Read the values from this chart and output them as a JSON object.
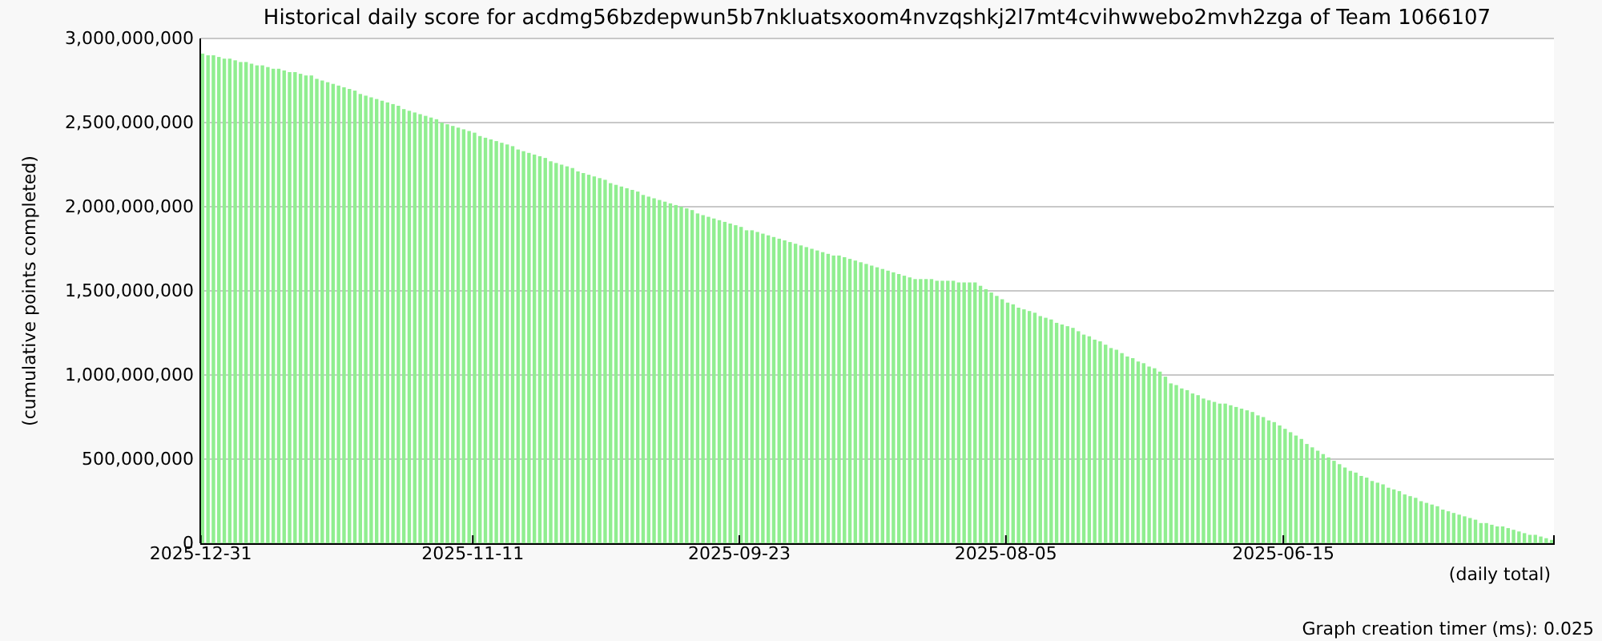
{
  "chart_data": {
    "type": "bar",
    "title": "Historical daily score for acdmg56bzdepwun5b7nkluatsxoom4nvzqshkj2l7mt4cvihwwebo2mvh2zga of Team 1066107",
    "ylabel": "(cumulative points completed)",
    "xlabel": "(daily total)",
    "annotations": [
      "Graph creation timer (ms): 0.025"
    ],
    "categories": [
      "2025-12-31",
      null,
      null,
      null,
      null,
      null,
      null,
      null,
      null,
      null,
      null,
      null,
      null,
      null,
      null,
      null,
      null,
      null,
      null,
      null,
      null,
      null,
      null,
      null,
      null,
      null,
      null,
      null,
      null,
      null,
      null,
      null,
      null,
      null,
      null,
      null,
      null,
      null,
      null,
      null,
      null,
      null,
      null,
      null,
      null,
      null,
      null,
      null,
      null,
      null,
      "2025-11-11",
      null,
      null,
      null,
      null,
      null,
      null,
      null,
      null,
      null,
      null,
      null,
      null,
      null,
      null,
      null,
      null,
      null,
      null,
      null,
      null,
      null,
      null,
      null,
      null,
      null,
      null,
      null,
      null,
      null,
      null,
      null,
      null,
      null,
      null,
      null,
      null,
      null,
      null,
      null,
      null,
      null,
      null,
      null,
      null,
      null,
      null,
      null,
      null,
      "2025-09-23",
      null,
      null,
      null,
      null,
      null,
      null,
      null,
      null,
      null,
      null,
      null,
      null,
      null,
      null,
      null,
      null,
      null,
      null,
      null,
      null,
      null,
      null,
      null,
      null,
      null,
      null,
      null,
      null,
      null,
      null,
      null,
      null,
      null,
      null,
      null,
      null,
      null,
      null,
      null,
      null,
      null,
      null,
      null,
      null,
      null,
      null,
      null,
      null,
      "2025-08-05",
      null,
      null,
      null,
      null,
      null,
      null,
      null,
      null,
      null,
      null,
      null,
      null,
      null,
      null,
      null,
      null,
      null,
      null,
      null,
      null,
      null,
      null,
      null,
      null,
      null,
      null,
      null,
      null,
      null,
      null,
      null,
      null,
      null,
      null,
      null,
      null,
      null,
      null,
      null,
      null,
      null,
      null,
      null,
      null,
      null,
      null,
      null,
      null,
      null,
      null,
      "2025-06-15",
      null,
      null,
      null,
      null,
      null,
      null,
      null,
      null,
      null,
      null,
      null,
      null,
      null,
      null,
      null,
      null,
      null,
      null,
      null,
      null,
      null,
      null,
      null,
      null,
      null,
      null,
      null,
      null,
      null,
      null,
      null,
      null,
      null,
      null,
      null,
      null,
      null,
      null,
      null,
      null,
      null,
      null,
      null,
      null,
      null,
      null,
      null,
      null,
      null
    ],
    "values": [
      2910000000,
      2900000000,
      2900000000,
      2890000000,
      2880000000,
      2880000000,
      2870000000,
      2860000000,
      2860000000,
      2850000000,
      2840000000,
      2840000000,
      2830000000,
      2820000000,
      2820000000,
      2810000000,
      2800000000,
      2800000000,
      2790000000,
      2780000000,
      2780000000,
      2760000000,
      2750000000,
      2740000000,
      2730000000,
      2720000000,
      2710000000,
      2700000000,
      2690000000,
      2670000000,
      2660000000,
      2650000000,
      2640000000,
      2630000000,
      2620000000,
      2610000000,
      2600000000,
      2580000000,
      2570000000,
      2560000000,
      2550000000,
      2540000000,
      2530000000,
      2520000000,
      2500000000,
      2490000000,
      2480000000,
      2470000000,
      2460000000,
      2450000000,
      2440000000,
      2420000000,
      2410000000,
      2400000000,
      2390000000,
      2380000000,
      2370000000,
      2360000000,
      2340000000,
      2330000000,
      2320000000,
      2310000000,
      2300000000,
      2290000000,
      2270000000,
      2260000000,
      2250000000,
      2240000000,
      2230000000,
      2210000000,
      2200000000,
      2190000000,
      2180000000,
      2170000000,
      2160000000,
      2140000000,
      2130000000,
      2120000000,
      2110000000,
      2100000000,
      2090000000,
      2070000000,
      2060000000,
      2050000000,
      2040000000,
      2030000000,
      2020000000,
      2010000000,
      2000000000,
      1990000000,
      1980000000,
      1960000000,
      1950000000,
      1940000000,
      1930000000,
      1920000000,
      1910000000,
      1900000000,
      1890000000,
      1880000000,
      1860000000,
      1860000000,
      1850000000,
      1840000000,
      1830000000,
      1820000000,
      1810000000,
      1800000000,
      1790000000,
      1780000000,
      1770000000,
      1760000000,
      1750000000,
      1740000000,
      1730000000,
      1720000000,
      1710000000,
      1710000000,
      1700000000,
      1690000000,
      1680000000,
      1670000000,
      1660000000,
      1650000000,
      1640000000,
      1630000000,
      1620000000,
      1610000000,
      1600000000,
      1590000000,
      1580000000,
      1570000000,
      1570000000,
      1570000000,
      1570000000,
      1560000000,
      1560000000,
      1560000000,
      1560000000,
      1550000000,
      1550000000,
      1550000000,
      1550000000,
      1530000000,
      1510000000,
      1490000000,
      1470000000,
      1450000000,
      1430000000,
      1420000000,
      1400000000,
      1390000000,
      1380000000,
      1370000000,
      1350000000,
      1340000000,
      1330000000,
      1310000000,
      1300000000,
      1290000000,
      1280000000,
      1260000000,
      1240000000,
      1230000000,
      1210000000,
      1200000000,
      1180000000,
      1160000000,
      1150000000,
      1130000000,
      1110000000,
      1100000000,
      1080000000,
      1070000000,
      1050000000,
      1040000000,
      1020000000,
      990000000,
      950000000,
      940000000,
      920000000,
      910000000,
      890000000,
      880000000,
      860000000,
      850000000,
      840000000,
      830000000,
      830000000,
      820000000,
      810000000,
      800000000,
      790000000,
      780000000,
      760000000,
      750000000,
      730000000,
      720000000,
      700000000,
      680000000,
      660000000,
      640000000,
      620000000,
      590000000,
      570000000,
      550000000,
      530000000,
      510000000,
      490000000,
      470000000,
      450000000,
      430000000,
      420000000,
      400000000,
      390000000,
      370000000,
      360000000,
      350000000,
      330000000,
      320000000,
      310000000,
      290000000,
      280000000,
      270000000,
      250000000,
      240000000,
      230000000,
      220000000,
      200000000,
      190000000,
      180000000,
      170000000,
      160000000,
      150000000,
      140000000,
      120000000,
      120000000,
      110000000,
      100000000,
      100000000,
      90000000,
      80000000,
      70000000,
      60000000,
      50000000,
      50000000,
      40000000,
      30000000,
      20000000
    ],
    "color": "#90ee90",
    "ylim": [
      0,
      3000000000
    ],
    "yticks": [
      0,
      {
        "value": 500000000,
        "label": "500,000,000"
      },
      {
        "value": 1000000000,
        "label": "1,000,000,000"
      },
      {
        "value": 1500000000,
        "label": "1,500,000,000"
      },
      {
        "value": 2000000000,
        "label": "2,000,000,000"
      },
      {
        "value": 2500000000,
        "label": "2,500,000,000"
      },
      {
        "value": 3000000000,
        "label": "3,000,000,000"
      }
    ],
    "grid": "y"
  }
}
